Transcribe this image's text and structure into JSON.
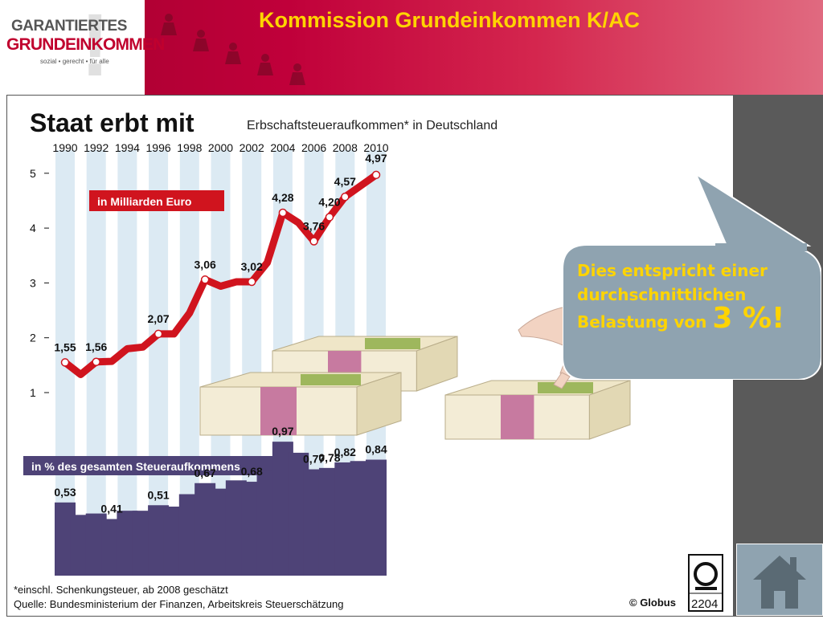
{
  "header": {
    "title": "Kommission Grundeinkommen K/AC",
    "logo": {
      "line1": "GARANTIERTES",
      "line2": "GRUNDEINKOMMEN",
      "tagline": "sozial • gerecht • für alle"
    }
  },
  "chart_data": [
    {
      "type": "line",
      "title": "Staat erbt mit",
      "subtitle": "Erbschaftsteueraufkommen* in Deutschland",
      "unit_label": "in Milliarden Euro",
      "x_ticks": [
        "1990",
        "1992",
        "1994",
        "1996",
        "1998",
        "2000",
        "2002",
        "2004",
        "2006",
        "2008",
        "2010"
      ],
      "y_ticks": [
        1,
        2,
        3,
        4,
        5
      ],
      "ylim": [
        0.6,
        5.3
      ],
      "x": [
        1990,
        1991,
        1992,
        1993,
        1994,
        1995,
        1996,
        1997,
        1998,
        1999,
        2000,
        2001,
        2002,
        2003,
        2004,
        2005,
        2006,
        2007,
        2008,
        2009,
        2010
      ],
      "values": [
        1.55,
        1.33,
        1.56,
        1.57,
        1.8,
        1.83,
        2.07,
        2.07,
        2.45,
        3.06,
        2.94,
        3.02,
        3.02,
        3.37,
        4.28,
        4.1,
        3.76,
        4.2,
        4.57,
        4.77,
        4.97
      ],
      "labels": {
        "1990": "1,55",
        "1992": "1,56",
        "1996": "2,07",
        "1999": "3,06",
        "2002": "3,02",
        "2004": "4,28",
        "2006": "3,76",
        "2007": "4,20",
        "2008": "4,57",
        "2010": "4,97"
      },
      "grid": "vertical-bands",
      "color": "#d0141e"
    },
    {
      "type": "bar",
      "title": "in % des gesamten Steueraufkommens",
      "x": [
        1990,
        1991,
        1992,
        1993,
        1994,
        1995,
        1996,
        1997,
        1998,
        1999,
        2000,
        2001,
        2002,
        2003,
        2004,
        2005,
        2006,
        2007,
        2008,
        2009,
        2010
      ],
      "values": [
        0.53,
        0.44,
        0.45,
        0.41,
        0.47,
        0.47,
        0.51,
        0.5,
        0.59,
        0.67,
        0.63,
        0.69,
        0.68,
        0.76,
        0.97,
        0.89,
        0.77,
        0.78,
        0.82,
        0.83,
        0.84
      ],
      "labels": {
        "1990": "0,53",
        "1993": "0,41",
        "1996": "0,51",
        "1999": "0,67",
        "2002": "0,68",
        "2004": "0,97",
        "2006": "0,77",
        "2007": "0,78",
        "2008": "0,82",
        "2010": "0,84"
      },
      "color": "#4e4377"
    }
  ],
  "notes": {
    "footnote": "*einschl. Schenkungsteuer, ab 2008 geschätzt",
    "source": "Quelle: Bundesministerium der Finanzen, Arbeitskreis Steuerschätzung",
    "credit": "© Globus",
    "badge_number": "2204"
  },
  "callout": {
    "line1": "Dies entspricht einer",
    "line2": "durchschnittlichen",
    "line3_prefix": "Belastung von ",
    "line3_value": "3 %!"
  },
  "colors": {
    "header": "#c0003a",
    "title_yellow": "#ffd400",
    "line": "#d0141e",
    "bars": "#4e4377",
    "bubble": "#8fa3b0"
  },
  "icons": {
    "home": "home-icon",
    "money": "banknote-stack-icon",
    "hand": "hand-icon",
    "logo": "globus-logo-icon"
  }
}
